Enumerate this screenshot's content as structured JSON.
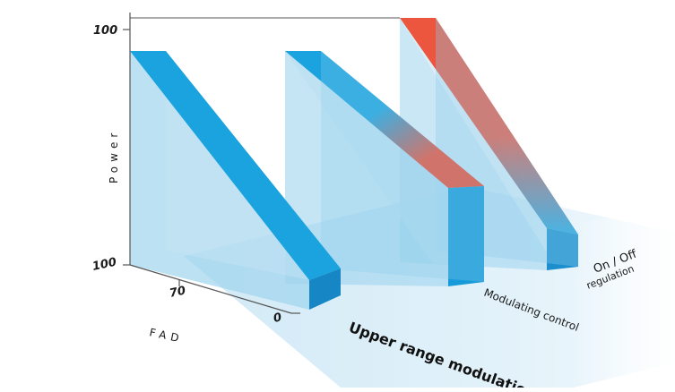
{
  "axis": {
    "y_title": "Power",
    "y_tick_top": "100",
    "x_title": "FAD",
    "x_ticks": [
      "100",
      "70",
      "0"
    ]
  },
  "labels": {
    "on_off": "On / Off",
    "regulation": "regulation",
    "modulating": "Modulating control",
    "upper": "Upper range modulation"
  },
  "colors": {
    "volume": "#9fd4ee",
    "band": "#1aa3df",
    "red": "#ee4e34",
    "floor": "#d6edf8",
    "axis": "#555555",
    "text": "#1a1a1a"
  }
}
